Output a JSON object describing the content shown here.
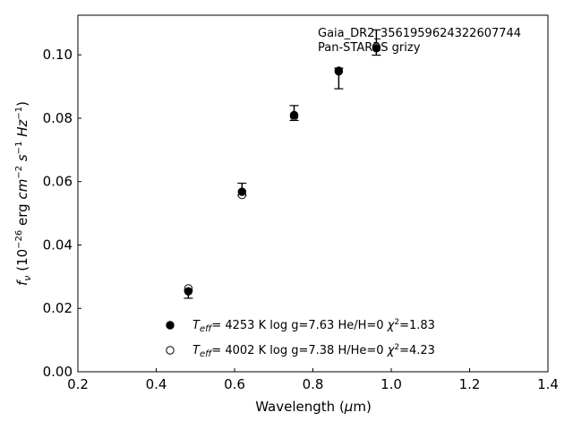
{
  "chart_data": {
    "type": "scatter",
    "title": "",
    "xlabel": "Wavelength (μm)",
    "ylabel": "f_ν (10^-26 erg cm^-2 s^-1 Hz^-1)",
    "xlim": [
      0.2,
      1.4
    ],
    "ylim": [
      0.0,
      0.1125
    ],
    "x_ticks": [
      "0.2",
      "0.4",
      "0.6",
      "0.8",
      "1.0",
      "1.2",
      "1.4"
    ],
    "y_ticks": [
      "0.00",
      "0.02",
      "0.04",
      "0.06",
      "0.08",
      "0.10"
    ],
    "grid": false,
    "legend_position": "bottom-center",
    "annotation": {
      "line1": "Gaia_DR2_3561959624322607744",
      "line2": "Pan-STARRS grizy"
    },
    "observed": {
      "x": [
        0.482,
        0.619,
        0.752,
        0.866,
        0.962
      ],
      "y": [
        0.0256,
        0.0568,
        0.0808,
        0.0948,
        0.1022
      ],
      "err_low": [
        0.0024,
        0.0012,
        0.0015,
        0.0055,
        0.0023
      ],
      "err_high": [
        0.0,
        0.0027,
        0.0032,
        0.001,
        0.0057
      ]
    },
    "series": [
      {
        "marker": "filled",
        "legend": {
          "teff_value": "4253 K",
          "logg": "log g=7.63",
          "comp": "He/H=0",
          "chi_value": "=1.83"
        },
        "x": [
          0.482,
          0.619,
          0.752,
          0.866,
          0.962
        ],
        "y": [
          0.0254,
          0.0568,
          0.081,
          0.095,
          0.1021
        ]
      },
      {
        "marker": "open",
        "legend": {
          "teff_value": "4002 K",
          "logg": "log g=7.38",
          "comp": "H/He=0",
          "chi_value": "=4.23"
        },
        "x": [
          0.482,
          0.619,
          0.752,
          0.866,
          0.962
        ],
        "y": [
          0.0263,
          0.0558,
          0.0806,
          0.0948,
          0.1025
        ]
      }
    ]
  }
}
